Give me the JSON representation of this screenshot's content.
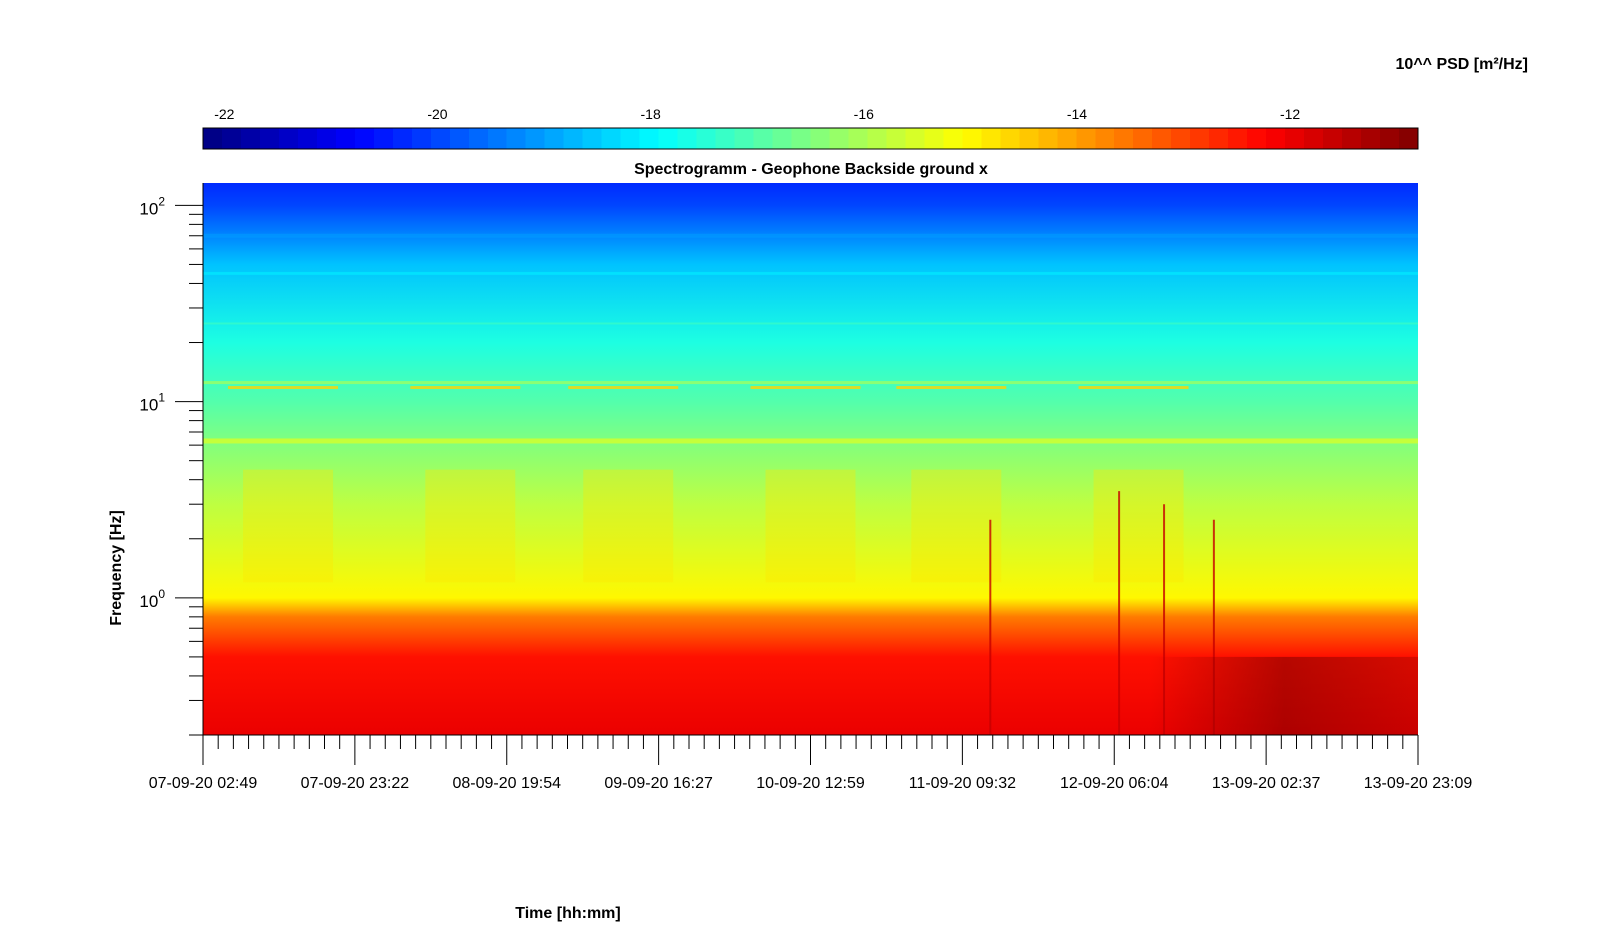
{
  "chart_data": {
    "type": "heatmap",
    "title": "Spectrogramm - Geophone Backside ground x",
    "xlabel": "Time [hh:mm]",
    "ylabel": "Frequency [Hz]",
    "colorbar_label": "10^^ PSD [m²/Hz]",
    "colormap": "jet",
    "x_tick_labels": [
      "07-09-20 02:49",
      "07-09-20 23:22",
      "08-09-20 19:54",
      "09-09-20 16:27",
      "10-09-20 12:59",
      "11-09-20 09:32",
      "12-09-20 06:04",
      "13-09-20 02:37",
      "13-09-20 23:09"
    ],
    "y_scale": "log",
    "y_range_hz": [
      0.2,
      130
    ],
    "y_ticks": [
      {
        "value": 1,
        "base": "10",
        "exp": "0"
      },
      {
        "value": 10,
        "base": "10",
        "exp": "1"
      },
      {
        "value": 100,
        "base": "10",
        "exp": "2"
      }
    ],
    "colorbar_range": [
      -22.2,
      -10.8
    ],
    "colorbar_ticks": [
      -22,
      -20,
      -18,
      -16,
      -14,
      -12
    ],
    "colorbar_tick_labels": [
      "-22",
      "-20",
      "-18",
      "-16",
      "-14",
      "-12"
    ],
    "psd_profile_log10": [
      {
        "freq_hz": 0.2,
        "psd": -12.0
      },
      {
        "freq_hz": 0.5,
        "psd": -12.4
      },
      {
        "freq_hz": 0.8,
        "psd": -13.6
      },
      {
        "freq_hz": 1.0,
        "psd": -15.0
      },
      {
        "freq_hz": 3.0,
        "psd": -15.8
      },
      {
        "freq_hz": 6.3,
        "psd": -16.5
      },
      {
        "freq_hz": 10.0,
        "psd": -17.0
      },
      {
        "freq_hz": 20.0,
        "psd": -17.6
      },
      {
        "freq_hz": 50.0,
        "psd": -18.6
      },
      {
        "freq_hz": 100.0,
        "psd": -20.0
      },
      {
        "freq_hz": 130.0,
        "psd": -20.3
      }
    ],
    "grid": false
  }
}
